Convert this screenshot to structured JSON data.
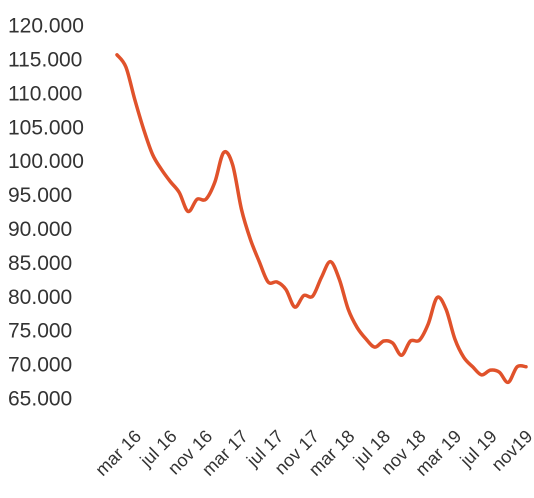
{
  "chart_data": {
    "type": "line",
    "categories": [
      "mar 16",
      null,
      null,
      null,
      "jul 16",
      null,
      null,
      null,
      "nov 16",
      null,
      null,
      null,
      "mar 17",
      null,
      null,
      null,
      "jul 17",
      null,
      null,
      null,
      "nov 17",
      null,
      null,
      null,
      "mar 18",
      null,
      null,
      null,
      "jul 18",
      null,
      null,
      null,
      "nov 18",
      null,
      null,
      null,
      "mar 19",
      null,
      null,
      null,
      "jul 19",
      null,
      null,
      null,
      "nov19",
      null,
      null
    ],
    "values": [
      115900,
      114100,
      109300,
      104900,
      101200,
      99000,
      97200,
      95600,
      92800,
      94600,
      94600,
      97100,
      101500,
      99700,
      93100,
      88700,
      85400,
      82400,
      82400,
      81300,
      78700,
      80400,
      80300,
      83100,
      85400,
      82800,
      78400,
      75700,
      74000,
      72800,
      73700,
      73400,
      71600,
      73700,
      73800,
      76200,
      80100,
      78400,
      74000,
      71300,
      69900,
      68700,
      69400,
      69100,
      67600,
      69900,
      69900
    ],
    "color": "#e0522b",
    "ylim": [
      65000,
      120000
    ],
    "yticks": [
      {
        "value": 120000,
        "label": "120.000"
      },
      {
        "value": 115000,
        "label": "115.000"
      },
      {
        "value": 110000,
        "label": "110.000"
      },
      {
        "value": 105000,
        "label": "105.000"
      },
      {
        "value": 100000,
        "label": "100.000"
      },
      {
        "value": 95000,
        "label": "95.000"
      },
      {
        "value": 90000,
        "label": "90.000"
      },
      {
        "value": 85000,
        "label": "85.000"
      },
      {
        "value": 80000,
        "label": "80.000"
      },
      {
        "value": 75000,
        "label": "75.000"
      },
      {
        "value": 70000,
        "label": "70.000"
      },
      {
        "value": 65000,
        "label": "65.000"
      }
    ],
    "grid": false
  }
}
